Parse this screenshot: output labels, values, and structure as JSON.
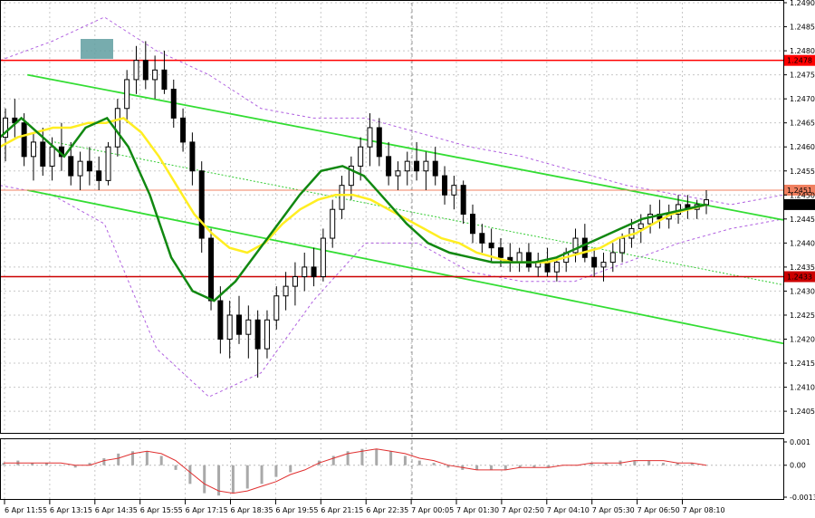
{
  "chart_data": [
    {
      "type": "candlestick",
      "y_range": [
        1.24005,
        1.249
      ],
      "y_ticks": [
        "1.2490",
        "1.2485",
        "1.2480",
        "1.2475",
        "1.2470",
        "1.2465",
        "1.2460",
        "1.2455",
        "1.2450",
        "1.2445",
        "1.2440",
        "1.2435",
        "1.2430",
        "1.2425",
        "1.2420",
        "1.2415",
        "1.2410",
        "1.2405"
      ],
      "x_ticks": [
        "6 Apr 11:55",
        "6 Apr 13:15",
        "6 Apr 14:35",
        "6 Apr 15:55",
        "6 Apr 17:15",
        "6 Apr 18:35",
        "6 Apr 19:55",
        "6 Apr 21:15",
        "6 Apr 22:35",
        "7 Apr 00:05",
        "7 Apr 01:30",
        "7 Apr 02:50",
        "7 Apr 04:10",
        "7 Apr 05:30",
        "7 Apr 06:50",
        "7 Apr 08:10"
      ],
      "horizontal_levels": [
        {
          "label": "1.2478",
          "value": 1.2478,
          "color": "#ff0000"
        },
        {
          "label": "1.2433",
          "value": 1.2433,
          "color": "#cc0000"
        }
      ],
      "price_labels": [
        {
          "label": "1.2451",
          "value": 1.2451,
          "color": "#f08060"
        },
        {
          "label": "1.2448",
          "value": 1.2448,
          "color": "#000000"
        }
      ],
      "channel_lines": [
        {
          "from": [
            0.035,
            1.2475
          ],
          "to": [
            1.0,
            1.24448
          ]
        },
        {
          "from": [
            0.035,
            1.2451
          ],
          "to": [
            1.0,
            1.24191
          ]
        }
      ],
      "candles_ohlc": [
        [
          1.2462,
          1.2468,
          1.2457,
          1.2466
        ],
        [
          1.2466,
          1.247,
          1.2462,
          1.2465
        ],
        [
          1.2465,
          1.2467,
          1.2456,
          1.2458
        ],
        [
          1.2458,
          1.2463,
          1.2453,
          1.2461
        ],
        [
          1.2461,
          1.2464,
          1.2454,
          1.2456
        ],
        [
          1.2456,
          1.2462,
          1.2453,
          1.246
        ],
        [
          1.246,
          1.2465,
          1.2455,
          1.2458
        ],
        [
          1.2458,
          1.2461,
          1.2452,
          1.2454
        ],
        [
          1.2454,
          1.2459,
          1.2451,
          1.2457
        ],
        [
          1.2457,
          1.246,
          1.2452,
          1.2455
        ],
        [
          1.2455,
          1.2458,
          1.2451,
          1.2453
        ],
        [
          1.2453,
          1.2461,
          1.2452,
          1.246
        ],
        [
          1.246,
          1.247,
          1.2458,
          1.2468
        ],
        [
          1.2468,
          1.2476,
          1.2465,
          1.2474
        ],
        [
          1.2474,
          1.2481,
          1.2471,
          1.2478
        ],
        [
          1.2478,
          1.2482,
          1.2472,
          1.2474
        ],
        [
          1.2474,
          1.2479,
          1.247,
          1.2476
        ],
        [
          1.2476,
          1.248,
          1.2471,
          1.2472
        ],
        [
          1.2472,
          1.2474,
          1.2464,
          1.2466
        ],
        [
          1.2466,
          1.2468,
          1.2459,
          1.2461
        ],
        [
          1.2461,
          1.2463,
          1.2452,
          1.2455
        ],
        [
          1.2455,
          1.2457,
          1.2438,
          1.2441
        ],
        [
          1.2441,
          1.2443,
          1.2426,
          1.2428
        ],
        [
          1.2428,
          1.2431,
          1.2417,
          1.242
        ],
        [
          1.242,
          1.2428,
          1.2416,
          1.2425
        ],
        [
          1.2425,
          1.2429,
          1.2419,
          1.2421
        ],
        [
          1.2421,
          1.2427,
          1.2416,
          1.2424
        ],
        [
          1.2424,
          1.2426,
          1.2412,
          1.2418
        ],
        [
          1.2418,
          1.2426,
          1.2416,
          1.2424
        ],
        [
          1.2424,
          1.2431,
          1.2422,
          1.2429
        ],
        [
          1.2429,
          1.2434,
          1.2426,
          1.2431
        ],
        [
          1.2431,
          1.2436,
          1.2427,
          1.2433
        ],
        [
          1.2433,
          1.2438,
          1.243,
          1.2435
        ],
        [
          1.2435,
          1.2439,
          1.2431,
          1.2433
        ],
        [
          1.2433,
          1.2443,
          1.2432,
          1.2441
        ],
        [
          1.2441,
          1.2449,
          1.2439,
          1.2447
        ],
        [
          1.2447,
          1.2454,
          1.2445,
          1.2452
        ],
        [
          1.2452,
          1.2458,
          1.2449,
          1.2456
        ],
        [
          1.2456,
          1.2462,
          1.2453,
          1.246
        ],
        [
          1.246,
          1.2467,
          1.2456,
          1.2464
        ],
        [
          1.2464,
          1.2466,
          1.2456,
          1.2458
        ],
        [
          1.2458,
          1.2461,
          1.2452,
          1.2454
        ],
        [
          1.2454,
          1.2457,
          1.2451,
          1.2455
        ],
        [
          1.2455,
          1.2459,
          1.2452,
          1.2457
        ],
        [
          1.2457,
          1.2461,
          1.2453,
          1.2455
        ],
        [
          1.2455,
          1.2459,
          1.2451,
          1.2457
        ],
        [
          1.2457,
          1.246,
          1.2452,
          1.2454
        ],
        [
          1.2454,
          1.2456,
          1.2448,
          1.245
        ],
        [
          1.245,
          1.2454,
          1.2447,
          1.2452
        ],
        [
          1.2452,
          1.2453,
          1.2444,
          1.2446
        ],
        [
          1.2446,
          1.2448,
          1.244,
          1.2442
        ],
        [
          1.2442,
          1.2444,
          1.2438,
          1.244
        ],
        [
          1.244,
          1.2443,
          1.2436,
          1.2439
        ],
        [
          1.2439,
          1.2441,
          1.2435,
          1.2437
        ],
        [
          1.2437,
          1.244,
          1.2434,
          1.2436
        ],
        [
          1.2436,
          1.2439,
          1.2434,
          1.2438
        ],
        [
          1.2438,
          1.244,
          1.2434,
          1.2435
        ],
        [
          1.2435,
          1.2438,
          1.2433,
          1.2436
        ],
        [
          1.2436,
          1.2439,
          1.2433,
          1.2434
        ],
        [
          1.2434,
          1.2437,
          1.2432,
          1.2436
        ],
        [
          1.2436,
          1.2439,
          1.2434,
          1.2438
        ],
        [
          1.2438,
          1.2443,
          1.2436,
          1.2441
        ],
        [
          1.2441,
          1.2444,
          1.2436,
          1.2437
        ],
        [
          1.2437,
          1.2439,
          1.2433,
          1.2435
        ],
        [
          1.2435,
          1.2438,
          1.2432,
          1.2436
        ],
        [
          1.2436,
          1.244,
          1.2434,
          1.2438
        ],
        [
          1.2438,
          1.2442,
          1.2436,
          1.2441
        ],
        [
          1.2441,
          1.2445,
          1.2439,
          1.2443
        ],
        [
          1.2443,
          1.2446,
          1.244,
          1.2444
        ],
        [
          1.2444,
          1.2448,
          1.2442,
          1.2446
        ],
        [
          1.2446,
          1.2449,
          1.2443,
          1.2445
        ],
        [
          1.2445,
          1.2448,
          1.2443,
          1.2446
        ],
        [
          1.2446,
          1.245,
          1.2444,
          1.2448
        ],
        [
          1.2448,
          1.245,
          1.2445,
          1.2447
        ],
        [
          1.2447,
          1.2449,
          1.2445,
          1.2448
        ],
        [
          1.2448,
          1.2451,
          1.2446,
          1.2449
        ]
      ],
      "sma_slow": [
        1.246,
        1.2462,
        1.2463,
        1.2464,
        1.2464,
        1.2465,
        1.2465,
        1.2466,
        1.2463,
        1.2458,
        1.2452,
        1.2446,
        1.2442,
        1.2439,
        1.2438,
        1.244,
        1.2444,
        1.2447,
        1.2449,
        1.245,
        1.245,
        1.2449,
        1.2447,
        1.2445,
        1.2443,
        1.2441,
        1.244,
        1.2438,
        1.2437,
        1.2436,
        1.2436,
        1.2436,
        1.2437,
        1.2438,
        1.2439,
        1.2441,
        1.2442,
        1.2444,
        1.2446,
        1.2447,
        1.2448
      ],
      "sma_fast": [
        1.2462,
        1.2466,
        1.2462,
        1.2458,
        1.2464,
        1.2466,
        1.246,
        1.245,
        1.2437,
        1.243,
        1.2428,
        1.2432,
        1.2438,
        1.2444,
        1.245,
        1.2455,
        1.2456,
        1.2454,
        1.2449,
        1.2444,
        1.244,
        1.2438,
        1.2437,
        1.2436,
        1.2436,
        1.2436,
        1.2437,
        1.2439,
        1.2441,
        1.2443,
        1.2445,
        1.2446,
        1.2447,
        1.2448
      ],
      "bollinger_upper": [
        1.2478,
        1.2482,
        1.2487,
        1.248,
        1.2475,
        1.2468,
        1.2466,
        1.2466,
        1.2463,
        1.246,
        1.2458,
        1.2455,
        1.2452,
        1.245,
        1.2448,
        1.245
      ],
      "bollinger_lower": [
        1.2452,
        1.245,
        1.2444,
        1.2418,
        1.2408,
        1.2413,
        1.2428,
        1.244,
        1.244,
        1.2434,
        1.2432,
        1.2432,
        1.2436,
        1.244,
        1.2443,
        1.2445
      ]
    },
    {
      "type": "bar",
      "y_ticks": [
        "0.001",
        "0.00",
        "-0.00137"
      ],
      "y_range": [
        -0.00137,
        0.001
      ],
      "histogram": [
        0.0001,
        0.0002,
        0.0001,
        0.0001,
        0.0,
        -0.0001,
        0.0001,
        0.0003,
        0.0005,
        0.0006,
        0.0006,
        0.0004,
        -0.0002,
        -0.0008,
        -0.0012,
        -0.0013,
        -0.0012,
        -0.001,
        -0.0008,
        -0.0005,
        -0.0003,
        0.0,
        0.0002,
        0.0004,
        0.0006,
        0.0007,
        0.0007,
        0.0006,
        0.0004,
        0.0002,
        0.0001,
        -0.0001,
        -0.0002,
        -0.0002,
        -0.0002,
        -0.0002,
        -0.0001,
        -0.0001,
        -0.0001,
        0.0,
        0.0,
        0.0001,
        0.0001,
        0.0002,
        0.0002,
        0.0002,
        0.0001,
        0.0001,
        0.0001,
        0.0
      ],
      "signal_line": [
        0.0001,
        0.0001,
        0.0001,
        0.0001,
        0.0001,
        0.0,
        0.0,
        0.0002,
        0.0003,
        0.0005,
        0.0006,
        0.0005,
        0.0002,
        -0.0003,
        -0.0008,
        -0.0011,
        -0.0012,
        -0.0011,
        -0.0009,
        -0.0007,
        -0.0004,
        -0.0002,
        0.0001,
        0.0003,
        0.0005,
        0.0006,
        0.0007,
        0.0006,
        0.0005,
        0.0003,
        0.0002,
        0.0,
        -0.0001,
        -0.0002,
        -0.0002,
        -0.0002,
        -0.0001,
        -0.0001,
        -0.0001,
        0.0,
        0.0,
        0.0001,
        0.0001,
        0.0001,
        0.0002,
        0.0002,
        0.0002,
        0.0001,
        0.0001,
        0.0
      ]
    }
  ]
}
